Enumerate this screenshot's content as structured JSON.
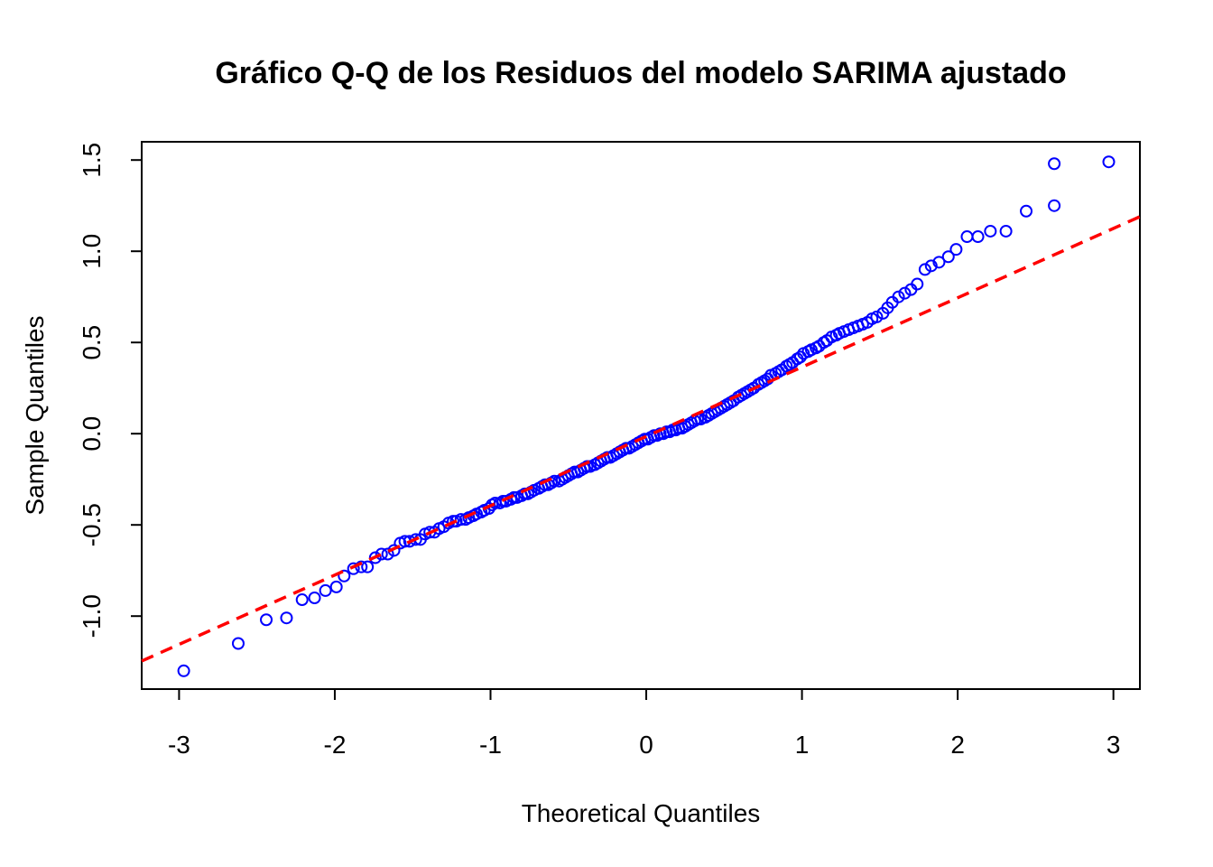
{
  "chart_data": {
    "type": "scatter",
    "title": "Gráfico Q-Q de los Residuos del modelo SARIMA ajustado",
    "xlabel": "Theoretical Quantiles",
    "ylabel": "Sample Quantiles",
    "xlim": [
      -3.24,
      3.17
    ],
    "ylim": [
      -1.4,
      1.6
    ],
    "x_ticks": [
      -3,
      -2,
      -1,
      0,
      1,
      2,
      3
    ],
    "x_tick_labels": [
      "-3",
      "-2",
      "-1",
      "0",
      "1",
      "2",
      "3"
    ],
    "y_ticks": [
      -1.0,
      -0.5,
      0.0,
      0.5,
      1.0,
      1.5
    ],
    "y_tick_labels": [
      "-1.0",
      "-0.5",
      "0.0",
      "0.5",
      "1.0",
      "1.5"
    ],
    "grid": false,
    "colors": {
      "points": "#0000ff",
      "reference_line": "#ff0000"
    },
    "reference_line": {
      "style": "dashed",
      "intercept": -0.015,
      "slope": 0.38
    },
    "series": [
      {
        "marker": "open-circle",
        "points": [
          [
            -2.97,
            -1.3
          ],
          [
            -2.62,
            -1.15
          ],
          [
            -2.44,
            -1.02
          ],
          [
            -2.31,
            -1.01
          ],
          [
            -2.21,
            -0.91
          ],
          [
            -2.13,
            -0.9
          ],
          [
            -2.06,
            -0.86
          ],
          [
            -1.99,
            -0.84
          ],
          [
            -1.94,
            -0.78
          ],
          [
            -1.88,
            -0.74
          ],
          [
            -1.83,
            -0.73
          ],
          [
            -1.79,
            -0.73
          ],
          [
            -1.74,
            -0.68
          ],
          [
            -1.7,
            -0.66
          ],
          [
            -1.66,
            -0.66
          ],
          [
            -1.62,
            -0.64
          ],
          [
            -1.58,
            -0.6
          ],
          [
            -1.55,
            -0.59
          ],
          [
            -1.52,
            -0.59
          ],
          [
            -1.48,
            -0.58
          ],
          [
            -1.45,
            -0.58
          ],
          [
            -1.42,
            -0.55
          ],
          [
            -1.39,
            -0.54
          ],
          [
            -1.36,
            -0.54
          ],
          [
            -1.33,
            -0.52
          ],
          [
            -1.3,
            -0.51
          ],
          [
            -1.27,
            -0.49
          ],
          [
            -1.24,
            -0.48
          ],
          [
            -1.22,
            -0.48
          ],
          [
            -1.19,
            -0.47
          ],
          [
            -1.16,
            -0.47
          ],
          [
            -1.14,
            -0.46
          ],
          [
            -1.11,
            -0.45
          ],
          [
            -1.09,
            -0.44
          ],
          [
            -1.06,
            -0.43
          ],
          [
            -1.04,
            -0.42
          ],
          [
            -1.01,
            -0.41
          ],
          [
            -0.99,
            -0.39
          ],
          [
            -0.97,
            -0.38
          ],
          [
            -0.94,
            -0.38
          ],
          [
            -0.92,
            -0.37
          ],
          [
            -0.9,
            -0.37
          ],
          [
            -0.87,
            -0.36
          ],
          [
            -0.85,
            -0.35
          ],
          [
            -0.83,
            -0.35
          ],
          [
            -0.8,
            -0.34
          ],
          [
            -0.78,
            -0.33
          ],
          [
            -0.76,
            -0.33
          ],
          [
            -0.74,
            -0.32
          ],
          [
            -0.72,
            -0.31
          ],
          [
            -0.69,
            -0.3
          ],
          [
            -0.67,
            -0.29
          ],
          [
            -0.65,
            -0.28
          ],
          [
            -0.63,
            -0.28
          ],
          [
            -0.61,
            -0.27
          ],
          [
            -0.59,
            -0.26
          ],
          [
            -0.56,
            -0.26
          ],
          [
            -0.54,
            -0.25
          ],
          [
            -0.52,
            -0.24
          ],
          [
            -0.5,
            -0.23
          ],
          [
            -0.48,
            -0.22
          ],
          [
            -0.46,
            -0.21
          ],
          [
            -0.44,
            -0.21
          ],
          [
            -0.42,
            -0.2
          ],
          [
            -0.4,
            -0.19
          ],
          [
            -0.38,
            -0.18
          ],
          [
            -0.36,
            -0.18
          ],
          [
            -0.33,
            -0.17
          ],
          [
            -0.31,
            -0.16
          ],
          [
            -0.29,
            -0.15
          ],
          [
            -0.27,
            -0.14
          ],
          [
            -0.25,
            -0.13
          ],
          [
            -0.23,
            -0.13
          ],
          [
            -0.21,
            -0.12
          ],
          [
            -0.19,
            -0.11
          ],
          [
            -0.17,
            -0.1
          ],
          [
            -0.15,
            -0.09
          ],
          [
            -0.13,
            -0.08
          ],
          [
            -0.11,
            -0.08
          ],
          [
            -0.09,
            -0.07
          ],
          [
            -0.07,
            -0.06
          ],
          [
            -0.05,
            -0.05
          ],
          [
            -0.03,
            -0.04
          ],
          [
            -0.01,
            -0.03
          ],
          [
            0.01,
            -0.03
          ],
          [
            0.03,
            -0.02
          ],
          [
            0.05,
            -0.01
          ],
          [
            0.07,
            -0.01
          ],
          [
            0.09,
            0.0
          ],
          [
            0.11,
            0.0
          ],
          [
            0.13,
            0.01
          ],
          [
            0.15,
            0.01
          ],
          [
            0.17,
            0.02
          ],
          [
            0.19,
            0.02
          ],
          [
            0.21,
            0.03
          ],
          [
            0.23,
            0.03
          ],
          [
            0.25,
            0.04
          ],
          [
            0.27,
            0.05
          ],
          [
            0.29,
            0.06
          ],
          [
            0.31,
            0.07
          ],
          [
            0.33,
            0.08
          ],
          [
            0.35,
            0.08
          ],
          [
            0.38,
            0.09
          ],
          [
            0.4,
            0.1
          ],
          [
            0.42,
            0.11
          ],
          [
            0.44,
            0.12
          ],
          [
            0.46,
            0.13
          ],
          [
            0.48,
            0.14
          ],
          [
            0.5,
            0.15
          ],
          [
            0.52,
            0.16
          ],
          [
            0.54,
            0.17
          ],
          [
            0.56,
            0.18
          ],
          [
            0.59,
            0.2
          ],
          [
            0.61,
            0.21
          ],
          [
            0.63,
            0.22
          ],
          [
            0.65,
            0.23
          ],
          [
            0.67,
            0.24
          ],
          [
            0.69,
            0.25
          ],
          [
            0.72,
            0.27
          ],
          [
            0.74,
            0.28
          ],
          [
            0.76,
            0.29
          ],
          [
            0.78,
            0.3
          ],
          [
            0.8,
            0.32
          ],
          [
            0.83,
            0.33
          ],
          [
            0.85,
            0.34
          ],
          [
            0.87,
            0.35
          ],
          [
            0.9,
            0.37
          ],
          [
            0.92,
            0.38
          ],
          [
            0.94,
            0.39
          ],
          [
            0.97,
            0.41
          ],
          [
            0.99,
            0.42
          ],
          [
            1.01,
            0.44
          ],
          [
            1.04,
            0.45
          ],
          [
            1.06,
            0.46
          ],
          [
            1.09,
            0.47
          ],
          [
            1.11,
            0.48
          ],
          [
            1.14,
            0.5
          ],
          [
            1.16,
            0.51
          ],
          [
            1.19,
            0.53
          ],
          [
            1.22,
            0.54
          ],
          [
            1.24,
            0.55
          ],
          [
            1.27,
            0.56
          ],
          [
            1.3,
            0.57
          ],
          [
            1.33,
            0.58
          ],
          [
            1.36,
            0.59
          ],
          [
            1.39,
            0.6
          ],
          [
            1.42,
            0.61
          ],
          [
            1.45,
            0.63
          ],
          [
            1.48,
            0.64
          ],
          [
            1.52,
            0.66
          ],
          [
            1.55,
            0.69
          ],
          [
            1.58,
            0.72
          ],
          [
            1.62,
            0.75
          ],
          [
            1.66,
            0.77
          ],
          [
            1.7,
            0.79
          ],
          [
            1.74,
            0.82
          ],
          [
            1.79,
            0.9
          ],
          [
            1.83,
            0.92
          ],
          [
            1.88,
            0.94
          ],
          [
            1.94,
            0.97
          ],
          [
            1.99,
            1.01
          ],
          [
            2.06,
            1.08
          ],
          [
            2.13,
            1.08
          ],
          [
            2.21,
            1.11
          ],
          [
            2.31,
            1.11
          ],
          [
            2.44,
            1.22
          ],
          [
            2.62,
            1.25
          ],
          [
            2.62,
            1.48
          ],
          [
            2.97,
            1.49
          ]
        ]
      }
    ]
  }
}
